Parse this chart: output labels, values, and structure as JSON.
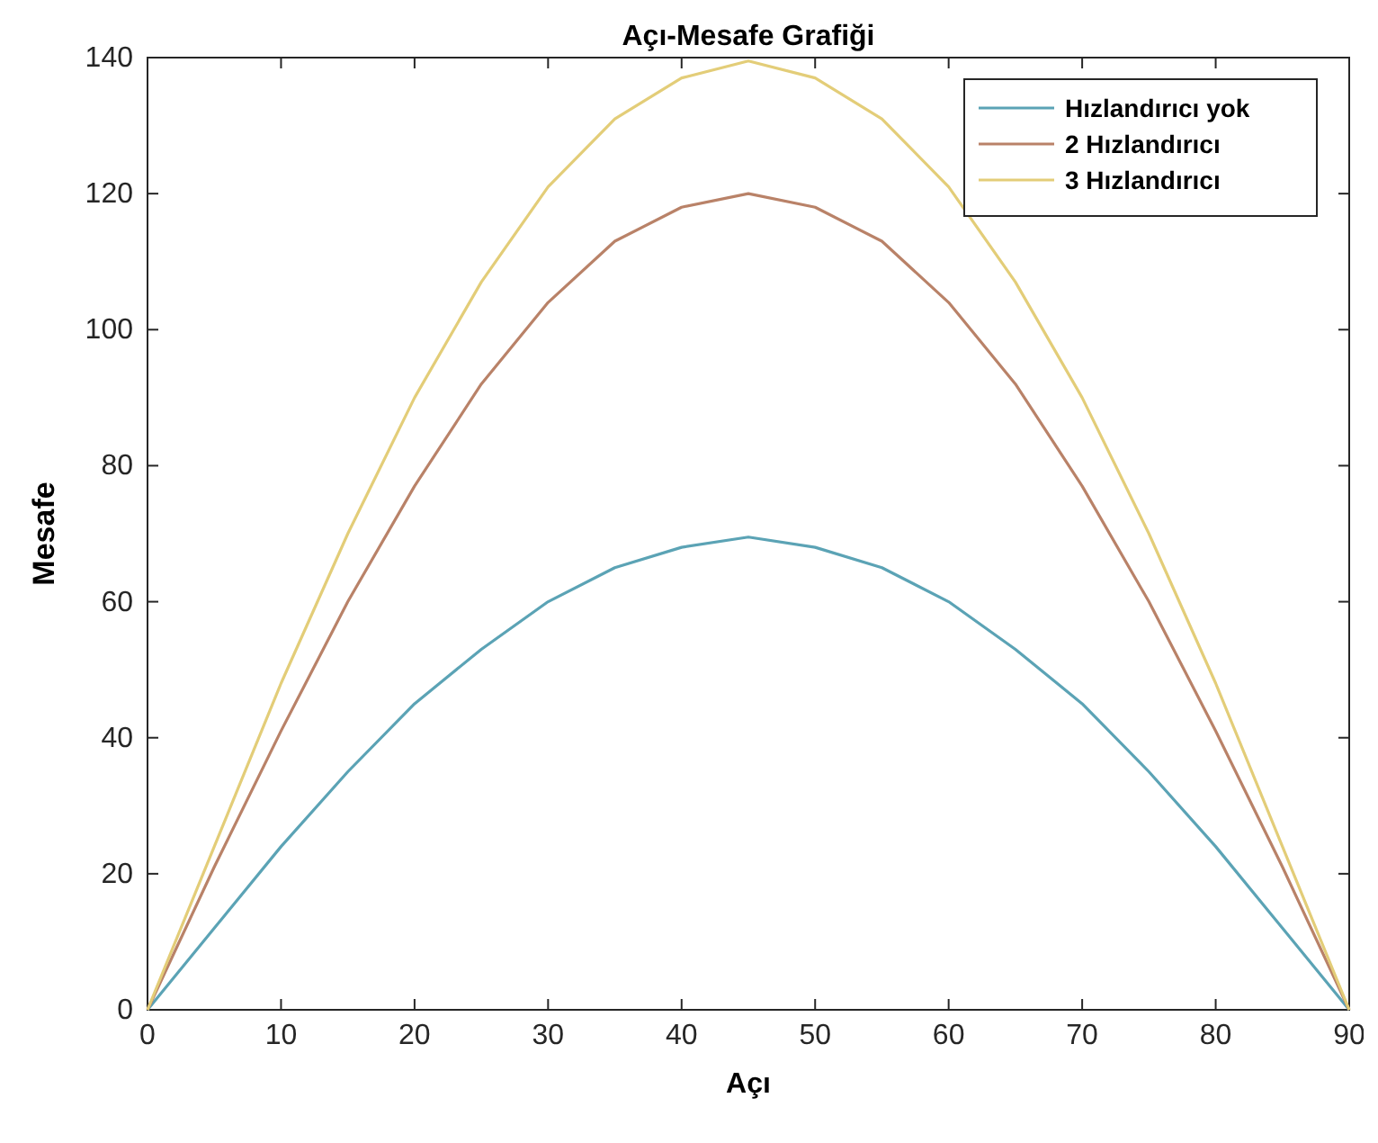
{
  "chart_data": {
    "type": "line",
    "title": "Açı-Mesafe Grafiği",
    "xlabel": "Açı",
    "ylabel": "Mesafe",
    "x": [
      0,
      5,
      10,
      15,
      20,
      25,
      30,
      35,
      40,
      45,
      50,
      55,
      60,
      65,
      70,
      75,
      80,
      85,
      90
    ],
    "xlim": [
      0,
      90
    ],
    "xticks": [
      0,
      10,
      20,
      30,
      40,
      50,
      60,
      70,
      80,
      90
    ],
    "ylim": [
      0,
      140
    ],
    "yticks": [
      0,
      20,
      40,
      60,
      80,
      100,
      120,
      140
    ],
    "legend": "top right",
    "grid": false,
    "marker": "none",
    "line_style": "solid",
    "series": [
      {
        "name": "Hızlandırıcı yok",
        "color": "#5ba3b5",
        "values": [
          0,
          12,
          24,
          35,
          45,
          53,
          60,
          65,
          68,
          69.5,
          68,
          65,
          60,
          53,
          45,
          35,
          24,
          12,
          0
        ]
      },
      {
        "name": "2 Hızlandırıcı",
        "color": "#b98268",
        "values": [
          0,
          21,
          41,
          60,
          77,
          92,
          104,
          113,
          118,
          120,
          118,
          113,
          104,
          92,
          77,
          60,
          41,
          21,
          0
        ]
      },
      {
        "name": "3 Hızlandırıcı",
        "color": "#e3cd78",
        "values": [
          0,
          24,
          48,
          70,
          90,
          107,
          121,
          131,
          137,
          139.5,
          137,
          131,
          121,
          107,
          90,
          70,
          48,
          24,
          0
        ]
      }
    ]
  }
}
